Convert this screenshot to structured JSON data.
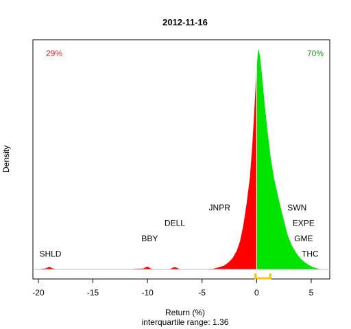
{
  "chart_data": {
    "type": "area",
    "title": "2012-11-16",
    "xlabel": "Return (%)",
    "subtitle": "interquartile range: 1.36",
    "ylabel": "Density",
    "xlim": [
      -20.5,
      6.7
    ],
    "ylim": [
      0,
      1
    ],
    "x_ticks": [
      -20,
      -15,
      -10,
      -5,
      0,
      5
    ],
    "x_tick_labels": [
      "-20",
      "-15",
      "-10",
      "-5",
      "0",
      "5"
    ],
    "grid": false,
    "negative_share_label": "29%",
    "positive_share_label": "70%",
    "negative_color": "#ff0000",
    "positive_color": "#00e400",
    "negative_label_color": "#e0201e",
    "positive_label_color": "#1f8f1f",
    "iqr_color": "#ffbf00",
    "iqr_range": [
      -0.1,
      1.26
    ],
    "density": {
      "x": [
        -20,
        -19.3,
        -19.0,
        -18.7,
        -18.4,
        -12,
        -10.4,
        -10.0,
        -9.7,
        -9.4,
        -8.0,
        -7.8,
        -7.5,
        -7.2,
        -7.0,
        -5.0,
        -4.0,
        -3.6,
        -3.0,
        -2.6,
        -2.2,
        -1.8,
        -1.5,
        -1.2,
        -0.9,
        -0.6,
        -0.4,
        -0.2,
        0.0,
        0.15,
        0.3,
        0.5,
        0.7,
        1.0,
        1.3,
        1.6,
        2.0,
        2.4,
        2.8,
        3.2,
        3.6,
        4.0,
        4.4,
        4.8,
        5.2,
        5.6,
        6.0
      ],
      "density": [
        0,
        0.004,
        0.011,
        0.004,
        0,
        0,
        0.003,
        0.012,
        0.003,
        0,
        0,
        0.004,
        0.01,
        0.004,
        0,
        0,
        0.002,
        0.007,
        0.016,
        0.03,
        0.05,
        0.085,
        0.13,
        0.2,
        0.3,
        0.42,
        0.55,
        0.72,
        0.9,
        1.0,
        0.97,
        0.87,
        0.76,
        0.62,
        0.5,
        0.41,
        0.32,
        0.24,
        0.16,
        0.11,
        0.075,
        0.05,
        0.032,
        0.018,
        0.009,
        0.003,
        0
      ]
    },
    "annotations": [
      {
        "text": "SHLD",
        "x": -18.9,
        "y": 0.058
      },
      {
        "text": "BBY",
        "x": -9.8,
        "y": 0.128
      },
      {
        "text": "DELL",
        "x": -7.5,
        "y": 0.198
      },
      {
        "text": "JNPR",
        "x": -3.4,
        "y": 0.268
      },
      {
        "text": "SWN",
        "x": 3.7,
        "y": 0.268
      },
      {
        "text": "EXPE",
        "x": 4.3,
        "y": 0.198
      },
      {
        "text": "GME",
        "x": 4.3,
        "y": 0.128
      },
      {
        "text": "THC",
        "x": 4.9,
        "y": 0.058
      }
    ]
  }
}
